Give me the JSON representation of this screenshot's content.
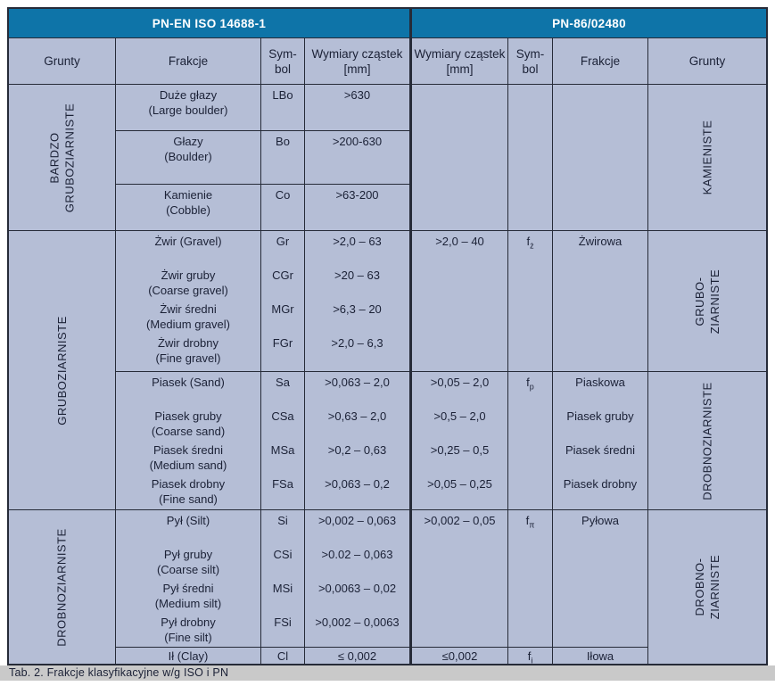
{
  "colors": {
    "header_blue": "#0e74a8",
    "cell_background": "#b5bed6",
    "border": "#262b38",
    "text": "#1b2136",
    "caption_background": "#c9c9c9"
  },
  "standards": {
    "iso": "PN-EN ISO 14688-1",
    "pn": "PN-86/02480"
  },
  "col_headers": {
    "grunty": "Grunty",
    "frakcje": "Frakcje",
    "symbol_l1": "Sym-",
    "symbol_l2": "bol",
    "wymiary_l1": "Wymiary cząstek",
    "wymiary_l2": "[mm]"
  },
  "iso": {
    "groups": [
      {
        "l1": "BARDZO",
        "l2": "GRUBOZIARNISTE"
      },
      {
        "l1": "GRUBOZIARNISTE"
      },
      {
        "l1": "DROBNOZIARNISTE"
      }
    ],
    "boulders": [
      {
        "name": "Duże głazy",
        "en": "(Large boulder)",
        "symbol": "LBo",
        "size": ">630"
      },
      {
        "name": "Głazy",
        "en": "(Boulder)",
        "symbol": "Bo",
        "size": ">200-630"
      },
      {
        "name": "Kamienie",
        "en": "(Cobble)",
        "symbol": "Co",
        "size": ">63-200"
      }
    ],
    "gravel": [
      {
        "name": "Żwir (Gravel)",
        "en": "",
        "symbol": "Gr",
        "size": ">2,0 – 63"
      },
      {
        "name": "Żwir gruby",
        "en": "(Coarse gravel)",
        "symbol": "CGr",
        "size": ">20 – 63"
      },
      {
        "name": "Żwir średni",
        "en": "(Medium gravel)",
        "symbol": "MGr",
        "size": ">6,3 – 20"
      },
      {
        "name": "Żwir drobny",
        "en": "(Fine gravel)",
        "symbol": "FGr",
        "size": ">2,0 – 6,3"
      }
    ],
    "sand": [
      {
        "name": "Piasek (Sand)",
        "en": "",
        "symbol": "Sa",
        "size": ">0,063 – 2,0"
      },
      {
        "name": "Piasek gruby",
        "en": "(Coarse sand)",
        "symbol": "CSa",
        "size": ">0,63 – 2,0"
      },
      {
        "name": "Piasek średni",
        "en": "(Medium sand)",
        "symbol": "MSa",
        "size": ">0,2 – 0,63"
      },
      {
        "name": "Piasek drobny",
        "en": "(Fine sand)",
        "symbol": "FSa",
        "size": ">0,063 – 0,2"
      }
    ],
    "silt": [
      {
        "name": "Pył (Silt)",
        "en": "",
        "symbol": "Si",
        "size": ">0,002 – 0,063"
      },
      {
        "name": "Pył gruby",
        "en": "(Coarse silt)",
        "symbol": "CSi",
        "size": ">0.02 – 0,063"
      },
      {
        "name": "Pył średni",
        "en": "(Medium silt)",
        "symbol": "MSi",
        "size": ">0,0063 – 0,02"
      },
      {
        "name": "Pył drobny",
        "en": "(Fine silt)",
        "symbol": "FSi",
        "size": ">0,002 – 0,0063"
      }
    ],
    "clay": {
      "name": "Ił (Clay)",
      "symbol": "Cl",
      "size": "≤ 0,002"
    }
  },
  "pn": {
    "gravel": {
      "size": ">2,0 – 40",
      "sym": "f",
      "sub": "ż",
      "fraction": "Żwirowa"
    },
    "sand": {
      "sym": "f",
      "sub": "p",
      "rows": [
        {
          "size": ">0,05 – 2,0",
          "fraction": "Piaskowa"
        },
        {
          "size": ">0,5 – 2,0",
          "fraction": "Piasek gruby"
        },
        {
          "size": ">0,25 – 0,5",
          "fraction": "Piasek średni"
        },
        {
          "size": ">0,05 – 0,25",
          "fraction": "Piasek drobny"
        }
      ]
    },
    "silt": {
      "size": ">0,002 – 0,05",
      "sym": "f",
      "sub": "π",
      "fraction": "Pyłowa"
    },
    "clay": {
      "size": "≤0,002",
      "sym": "f",
      "sub": "i",
      "fraction": "Iłowa"
    },
    "groups": [
      {
        "l1": "KAMIENISTE"
      },
      {
        "l1": "GRUBO-",
        "l2": "ZIARNISTE"
      },
      {
        "l1": "DROBNOZIARNISTE"
      },
      {
        "l1": "DROBNO-",
        "l2": "ZIARNISTE"
      }
    ]
  },
  "caption": "Tab. 2. Frakcje klasyfikacyjne w/g ISO i PN"
}
